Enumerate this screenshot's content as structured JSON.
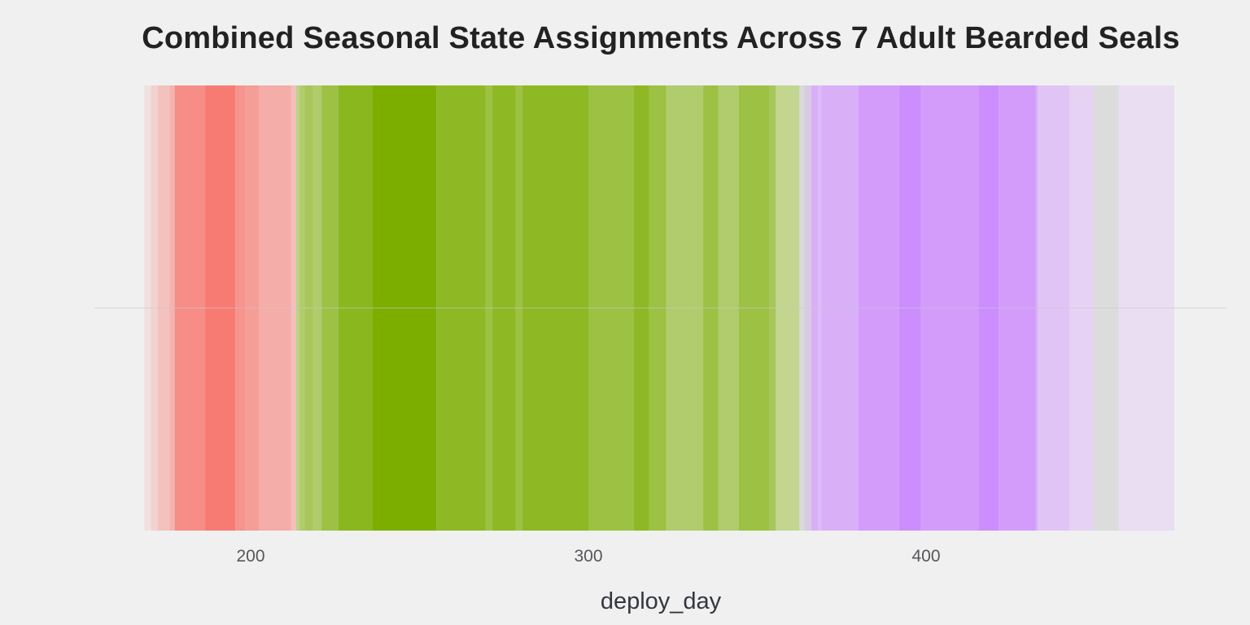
{
  "chart_data": {
    "type": "bar",
    "title": "Combined Seasonal State Assignments Across 7 Adult Bearded Seals",
    "xlabel": "deploy_day",
    "ylabel": "",
    "xlim": [
      140,
      475
    ],
    "xticks": [
      200,
      300,
      400
    ],
    "xtick_labels": [
      "200",
      "300",
      "400"
    ],
    "grid": "y-center-line",
    "legend": "none",
    "colors": {
      "background": "#f0f0f0",
      "state_1": "#f8766d",
      "state_2": "#7cae00",
      "state_3": "#c77cff",
      "neutral": "#cfcfcf",
      "gridline": "#d8d8d8"
    },
    "series": [
      {
        "state": 1,
        "color": "#f8766d",
        "bands": [
          {
            "start": 168.5,
            "end": 170.5,
            "opacity": 0.12
          },
          {
            "start": 170.5,
            "end": 172.5,
            "opacity": 0.25
          },
          {
            "start": 172.5,
            "end": 176.0,
            "opacity": 0.38
          },
          {
            "start": 176.0,
            "end": 177.5,
            "opacity": 0.5
          },
          {
            "start": 177.5,
            "end": 186.5,
            "opacity": 0.8
          },
          {
            "start": 186.5,
            "end": 195.5,
            "opacity": 0.96
          },
          {
            "start": 195.5,
            "end": 198.5,
            "opacity": 0.75
          },
          {
            "start": 198.5,
            "end": 202.5,
            "opacity": 0.68
          },
          {
            "start": 202.5,
            "end": 212.0,
            "opacity": 0.55
          },
          {
            "start": 212.0,
            "end": 213.5,
            "opacity": 0.4
          }
        ]
      },
      {
        "state": 2,
        "color": "#7cae00",
        "bands": [
          {
            "start": 213.5,
            "end": 214.5,
            "opacity": 0.45
          },
          {
            "start": 214.5,
            "end": 216.0,
            "opacity": 0.55
          },
          {
            "start": 216.0,
            "end": 218.5,
            "opacity": 0.62
          },
          {
            "start": 218.5,
            "end": 221.0,
            "opacity": 0.55
          },
          {
            "start": 221.0,
            "end": 226.0,
            "opacity": 0.72
          },
          {
            "start": 226.0,
            "end": 236.0,
            "opacity": 0.88
          },
          {
            "start": 236.0,
            "end": 255.0,
            "opacity": 1.0
          },
          {
            "start": 255.0,
            "end": 269.5,
            "opacity": 0.85
          },
          {
            "start": 269.5,
            "end": 271.5,
            "opacity": 0.72
          },
          {
            "start": 271.5,
            "end": 278.5,
            "opacity": 0.85
          },
          {
            "start": 278.5,
            "end": 280.5,
            "opacity": 0.72
          },
          {
            "start": 280.5,
            "end": 300.0,
            "opacity": 0.85
          },
          {
            "start": 300.0,
            "end": 313.5,
            "opacity": 0.72
          },
          {
            "start": 313.5,
            "end": 318.0,
            "opacity": 0.85
          },
          {
            "start": 318.0,
            "end": 323.0,
            "opacity": 0.72
          },
          {
            "start": 323.0,
            "end": 334.0,
            "opacity": 0.55
          },
          {
            "start": 334.0,
            "end": 338.5,
            "opacity": 0.72
          },
          {
            "start": 338.5,
            "end": 344.5,
            "opacity": 0.55
          },
          {
            "start": 344.5,
            "end": 353.5,
            "opacity": 0.72
          },
          {
            "start": 353.5,
            "end": 355.5,
            "opacity": 0.62
          },
          {
            "start": 355.5,
            "end": 362.5,
            "opacity": 0.4
          }
        ]
      },
      {
        "state": 3,
        "color": "#c77cff",
        "bands": [
          {
            "start": 364.0,
            "end": 366.0,
            "opacity": 0.35
          },
          {
            "start": 366.0,
            "end": 368.0,
            "opacity": 0.55
          },
          {
            "start": 368.0,
            "end": 369.0,
            "opacity": 0.45
          },
          {
            "start": 369.0,
            "end": 380.0,
            "opacity": 0.55
          },
          {
            "start": 380.0,
            "end": 392.0,
            "opacity": 0.72
          },
          {
            "start": 392.0,
            "end": 398.5,
            "opacity": 0.85
          },
          {
            "start": 398.5,
            "end": 415.5,
            "opacity": 0.72
          },
          {
            "start": 415.5,
            "end": 421.5,
            "opacity": 0.85
          },
          {
            "start": 421.5,
            "end": 432.5,
            "opacity": 0.72
          },
          {
            "start": 432.5,
            "end": 433.0,
            "opacity": 0.55
          },
          {
            "start": 433.0,
            "end": 442.5,
            "opacity": 0.38
          },
          {
            "start": 442.5,
            "end": 449.5,
            "opacity": 0.25
          },
          {
            "start": 457.0,
            "end": 473.5,
            "opacity": 0.15
          }
        ]
      },
      {
        "state": 0,
        "color": "#cfcfcf",
        "bands": [
          {
            "start": 362.5,
            "end": 364.0,
            "opacity": 0.7
          },
          {
            "start": 364.0,
            "end": 366.0,
            "opacity": 0.45
          },
          {
            "start": 449.5,
            "end": 457.0,
            "opacity": 0.6
          }
        ]
      }
    ]
  }
}
